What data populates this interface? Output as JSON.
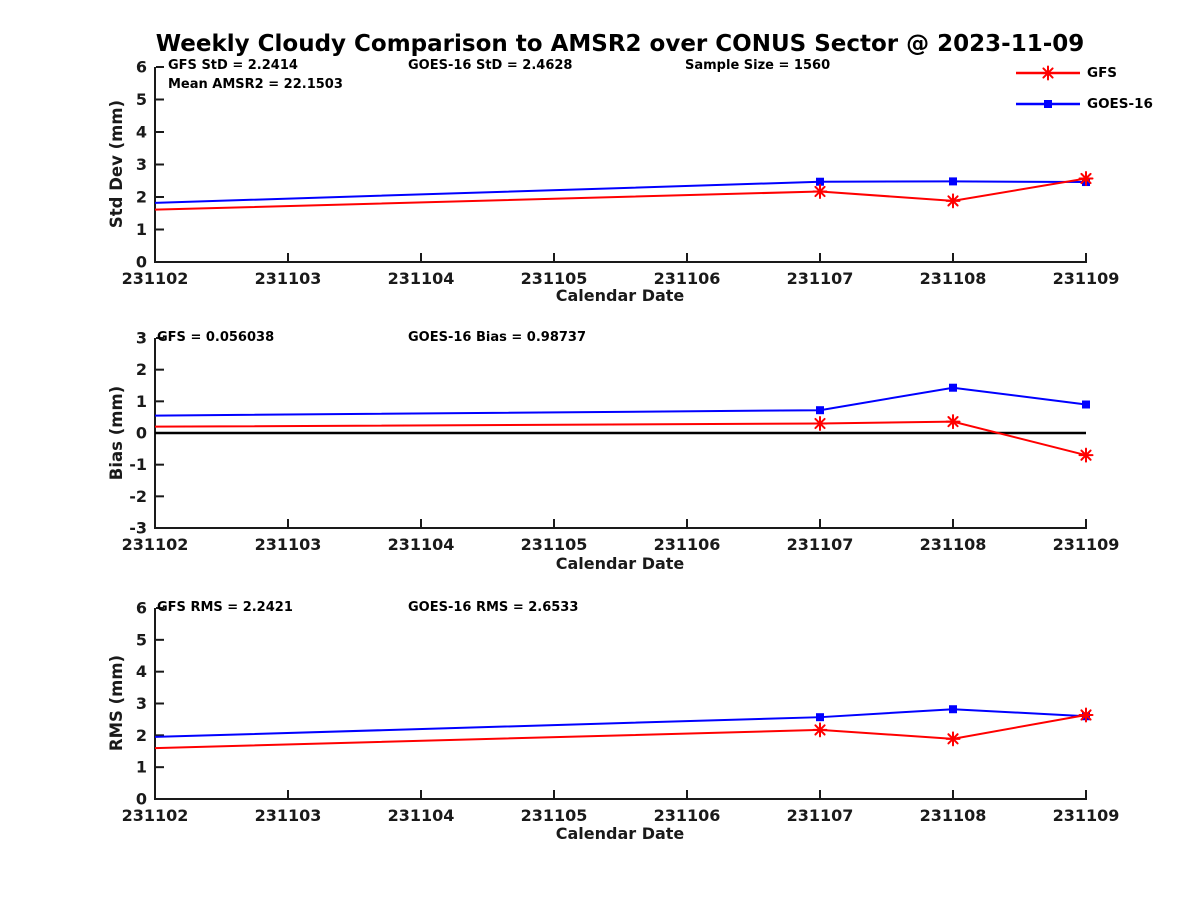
{
  "title": "Weekly Cloudy Comparison to AMSR2 over CONUS Sector @ 2023-11-09",
  "colors": {
    "gfs": "#ff0000",
    "goes16": "#0000ff",
    "axis": "#1a1a1a",
    "zero_line": "#000000",
    "background": "#ffffff"
  },
  "legend": {
    "items": [
      {
        "label": "GFS",
        "color": "#ff0000",
        "marker": "asterisk"
      },
      {
        "label": "GOES-16",
        "color": "#0000ff",
        "marker": "square"
      }
    ]
  },
  "chart_data": [
    {
      "type": "line",
      "panel": "std-dev",
      "ylabel": "Std Dev (mm)",
      "xlabel": "Calendar Date",
      "ylim": [
        0,
        6
      ],
      "yticks": [
        0,
        1,
        2,
        3,
        4,
        5,
        6
      ],
      "x_categories": [
        "231102",
        "231103",
        "231104",
        "231105",
        "231106",
        "231107",
        "231108",
        "231109"
      ],
      "zero_line": false,
      "series": [
        {
          "name": "GFS",
          "color": "#ff0000",
          "marker": "asterisk",
          "x_idx": [
            0,
            5,
            6,
            7
          ],
          "values": [
            1.61,
            2.17,
            1.88,
            2.57
          ],
          "marker_mask": [
            false,
            true,
            true,
            true
          ]
        },
        {
          "name": "GOES-16",
          "color": "#0000ff",
          "marker": "square",
          "x_idx": [
            0,
            5,
            6,
            7
          ],
          "values": [
            1.82,
            2.47,
            2.48,
            2.46
          ],
          "marker_mask": [
            false,
            true,
            true,
            true
          ]
        }
      ],
      "annotations": [
        {
          "text": "GFS StD = 2.2414"
        },
        {
          "text": "Mean AMSR2 = 22.1503"
        },
        {
          "text": "GOES-16 StD = 2.4628"
        },
        {
          "text": "Sample Size = 1560"
        }
      ]
    },
    {
      "type": "line",
      "panel": "bias",
      "ylabel": "Bias (mm)",
      "xlabel": "Calendar Date",
      "ylim": [
        -3,
        3
      ],
      "yticks": [
        -3,
        -2,
        -1,
        0,
        1,
        2,
        3
      ],
      "x_categories": [
        "231102",
        "231103",
        "231104",
        "231105",
        "231106",
        "231107",
        "231108",
        "231109"
      ],
      "zero_line": true,
      "series": [
        {
          "name": "GFS",
          "color": "#ff0000",
          "marker": "asterisk",
          "x_idx": [
            0,
            5,
            6,
            7
          ],
          "values": [
            0.2,
            0.3,
            0.36,
            -0.7
          ],
          "marker_mask": [
            false,
            true,
            true,
            true
          ]
        },
        {
          "name": "GOES-16",
          "color": "#0000ff",
          "marker": "square",
          "x_idx": [
            0,
            5,
            6,
            7
          ],
          "values": [
            0.55,
            0.72,
            1.43,
            0.9
          ],
          "marker_mask": [
            false,
            true,
            true,
            true
          ]
        }
      ],
      "annotations": [
        {
          "text": "GFS = 0.056038"
        },
        {
          "text": "GOES-16 Bias  = 0.98737"
        }
      ]
    },
    {
      "type": "line",
      "panel": "rms",
      "ylabel": "RMS (mm)",
      "xlabel": "Calendar Date",
      "ylim": [
        0,
        6
      ],
      "yticks": [
        0,
        1,
        2,
        3,
        4,
        5,
        6
      ],
      "x_categories": [
        "231102",
        "231103",
        "231104",
        "231105",
        "231106",
        "231107",
        "231108",
        "231109"
      ],
      "zero_line": false,
      "series": [
        {
          "name": "GFS",
          "color": "#ff0000",
          "marker": "asterisk",
          "x_idx": [
            0,
            5,
            6,
            7
          ],
          "values": [
            1.6,
            2.17,
            1.89,
            2.64
          ],
          "marker_mask": [
            false,
            true,
            true,
            true
          ]
        },
        {
          "name": "GOES-16",
          "color": "#0000ff",
          "marker": "square",
          "x_idx": [
            0,
            5,
            6,
            7
          ],
          "values": [
            1.95,
            2.57,
            2.82,
            2.6
          ],
          "marker_mask": [
            false,
            true,
            true,
            true
          ]
        }
      ],
      "annotations": [
        {
          "text": "GFS RMS = 2.2421"
        },
        {
          "text": "GOES-16 RMS = 2.6533"
        }
      ]
    }
  ]
}
